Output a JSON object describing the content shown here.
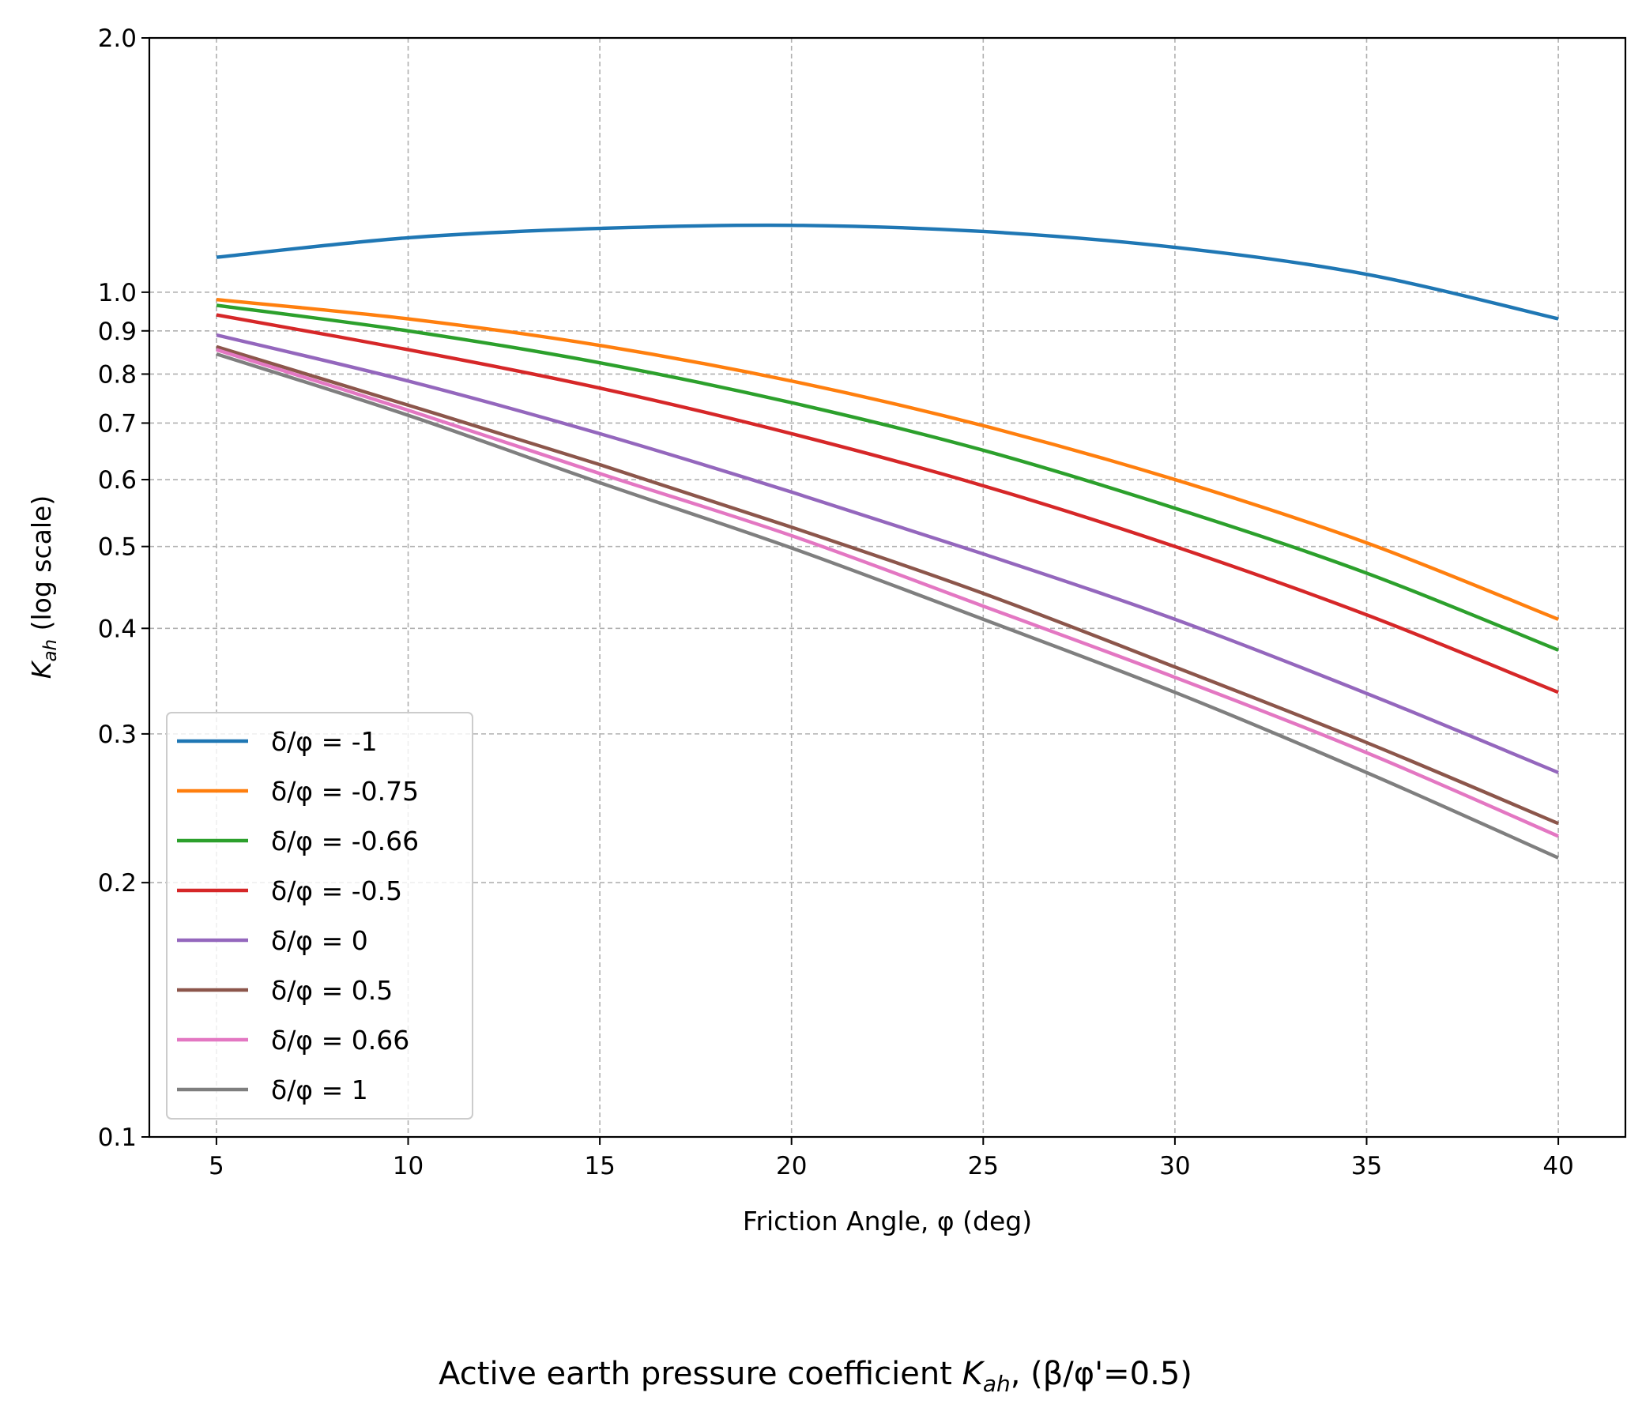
{
  "chart_data": {
    "type": "line",
    "xlabel": "Friction Angle, φ (deg)",
    "ylabel": {
      "main": "K",
      "sub": "ah",
      "suffix": " (log scale)"
    },
    "caption": {
      "prefix": "Active earth pressure coefficient ",
      "main": "K",
      "sub": "ah",
      "suffix": ", (β/φ'=0.5)"
    },
    "xlim": [
      3.25,
      41.75
    ],
    "ylim": [
      0.1,
      2.0
    ],
    "yscale": "log",
    "grid": true,
    "legend_position": "lower-left",
    "xticks": [
      5,
      10,
      15,
      20,
      25,
      30,
      35,
      40
    ],
    "xtick_labels": [
      "5",
      "10",
      "15",
      "20",
      "25",
      "30",
      "35",
      "40"
    ],
    "yticks": [
      0.1,
      0.2,
      0.3,
      0.4,
      0.5,
      0.6,
      0.7,
      0.8,
      0.9,
      1.0,
      2.0
    ],
    "ytick_labels": [
      "0.1",
      "0.2",
      "0.3",
      "0.4",
      "0.5",
      "0.6",
      "0.7",
      "0.8",
      "0.9",
      "1.0",
      "2.0"
    ],
    "x": [
      5,
      10,
      15,
      20,
      25,
      30,
      35,
      40
    ],
    "series": [
      {
        "name": "δ/φ = -1",
        "color": "#1f77b4",
        "values": [
          1.1,
          1.16,
          1.19,
          1.2,
          1.18,
          1.13,
          1.05,
          0.93
        ]
      },
      {
        "name": "δ/φ = -0.75",
        "color": "#ff7f0e",
        "values": [
          0.98,
          0.93,
          0.865,
          0.785,
          0.695,
          0.6,
          0.505,
          0.41
        ]
      },
      {
        "name": "δ/φ = -0.66",
        "color": "#2ca02c",
        "values": [
          0.965,
          0.9,
          0.825,
          0.74,
          0.65,
          0.555,
          0.465,
          0.377
        ]
      },
      {
        "name": "δ/φ = -0.5",
        "color": "#d62728",
        "values": [
          0.94,
          0.855,
          0.77,
          0.68,
          0.59,
          0.5,
          0.415,
          0.336
        ]
      },
      {
        "name": "δ/φ = 0",
        "color": "#9467bd",
        "values": [
          0.89,
          0.785,
          0.68,
          0.58,
          0.49,
          0.41,
          0.335,
          0.27
        ]
      },
      {
        "name": "δ/φ = 0.5",
        "color": "#8c564b",
        "values": [
          0.862,
          0.735,
          0.625,
          0.527,
          0.44,
          0.36,
          0.293,
          0.235
        ]
      },
      {
        "name": "δ/φ = 0.66",
        "color": "#e377c2",
        "values": [
          0.855,
          0.725,
          0.61,
          0.515,
          0.425,
          0.35,
          0.285,
          0.227
        ]
      },
      {
        "name": "δ/φ = 1",
        "color": "#7f7f7f",
        "values": [
          0.845,
          0.715,
          0.595,
          0.498,
          0.41,
          0.336,
          0.27,
          0.214
        ]
      }
    ]
  }
}
